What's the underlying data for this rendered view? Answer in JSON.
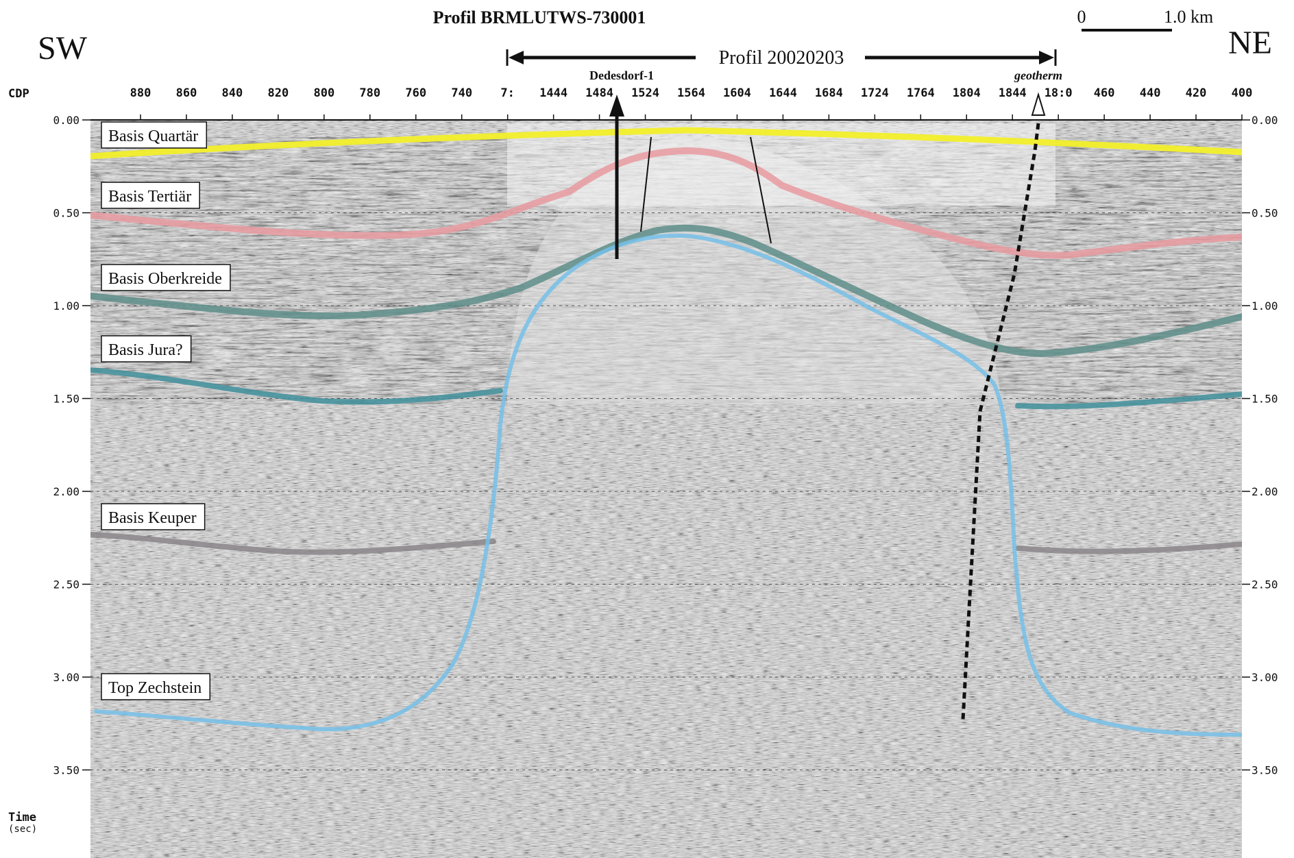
{
  "title": "Profil BRMLUTWS-730001",
  "direction_left": "SW",
  "direction_right": "NE",
  "scale_bar": {
    "zero_label": "0",
    "end_label": "1.0 km"
  },
  "inset_profile": {
    "label": "Profil 20020203"
  },
  "wells": [
    {
      "label": "Dedesdorf-1",
      "cdp_label": "1484",
      "style": "solid"
    },
    {
      "label": "geotherm",
      "cdp_label": "1844",
      "style": "dashed"
    }
  ],
  "axis": {
    "cdp_label": "CDP",
    "time_label": "Time",
    "time_unit": "(sec)",
    "cdp_ticks": [
      "880",
      "860",
      "840",
      "820",
      "800",
      "780",
      "760",
      "740",
      "7:",
      "1444",
      "1484",
      "1524",
      "1564",
      "1604",
      "1644",
      "1684",
      "1724",
      "1764",
      "1804",
      "1844",
      "18:0",
      "460",
      "440",
      "420",
      "400"
    ],
    "time_ticks": [
      "0.00",
      "0.50",
      "1.00",
      "1.50",
      "2.00",
      "2.50",
      "3.00",
      "3.50"
    ],
    "time_values": [
      0.0,
      0.5,
      1.0,
      1.5,
      2.0,
      2.5,
      3.0,
      3.5
    ]
  },
  "horizons": [
    {
      "label": "Basis Quartär",
      "color": "#f2ef2a"
    },
    {
      "label": "Basis Tertiär",
      "color": "#e79aa0"
    },
    {
      "label": "Basis Oberkreide",
      "color": "#5e8e8a"
    },
    {
      "label": "Basis Jura?",
      "color": "#3f8f9b"
    },
    {
      "label": "Basis Keuper",
      "color": "#8a8588"
    },
    {
      "label": "Top Zechstein",
      "color": "#76bfe8"
    }
  ]
}
